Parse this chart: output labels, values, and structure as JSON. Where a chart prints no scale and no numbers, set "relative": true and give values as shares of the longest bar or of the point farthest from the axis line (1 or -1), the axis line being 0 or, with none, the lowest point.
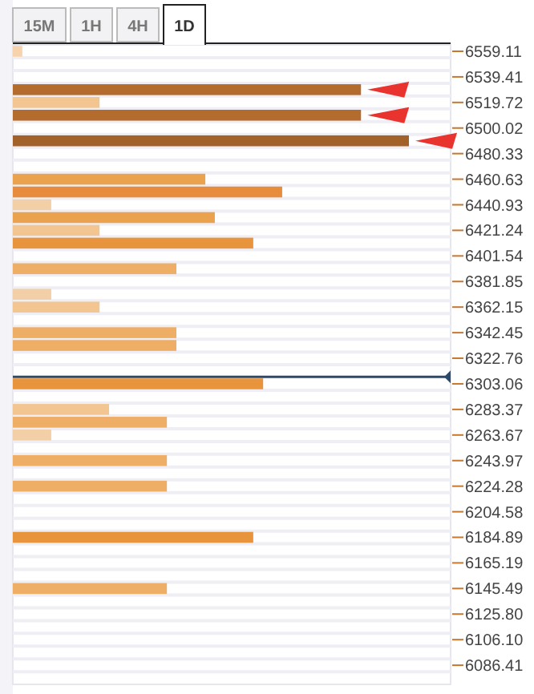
{
  "chart_data": {
    "type": "bar",
    "orientation": "horizontal",
    "relative": true,
    "annotations": [
      "15M",
      "1H",
      "4H",
      "1D"
    ],
    "x": [
      6559.11,
      6529.57,
      6519.72,
      6509.87,
      6490.18,
      6460.63,
      6450.78,
      6440.93,
      6431.09,
      6421.24,
      6411.39,
      6391.7,
      6372.0,
      6362.15,
      6342.45,
      6332.61,
      6303.06,
      6283.37,
      6273.52,
      6263.67,
      6243.97,
      6224.28,
      6184.89,
      6145.49
    ],
    "values": [
      0.024,
      0.879,
      0.219,
      0.879,
      1,
      0.486,
      0.68,
      0.097,
      0.51,
      0.219,
      0.607,
      0.413,
      0.097,
      0.219,
      0.413,
      0.413,
      0.632,
      0.243,
      0.389,
      0.097,
      0.389,
      0.389,
      0.607,
      0.389
    ],
    "colors": [
      "#f7d3ad",
      "#b36b2e",
      "#f2c591",
      "#b36b2e",
      "#a3612a",
      "#eba24f",
      "#e68c3c",
      "#f3cfa7",
      "#eba24f",
      "#f2c591",
      "#e8943d",
      "#eeae66",
      "#f3cfa7",
      "#f2c591",
      "#eeae66",
      "#eeae66",
      "#e8943d",
      "#f2c591",
      "#eeae66",
      "#f3cfa7",
      "#eeae66",
      "#eeae66",
      "#e8943d",
      "#eeae66"
    ],
    "ylim": [
      6071.66,
      6564.03
    ],
    "yticks": [
      6559.11,
      6539.41,
      6519.72,
      6500.02,
      6480.33,
      6460.63,
      6440.93,
      6421.24,
      6401.54,
      6381.85,
      6362.15,
      6342.45,
      6322.76,
      6303.06,
      6283.37,
      6263.67,
      6243.97,
      6224.28,
      6204.58,
      6184.89,
      6165.19,
      6145.49,
      {
        "value": 6125.8,
        "label": "6125.80"
      },
      {
        "value": 6106.1,
        "label": "6106.10"
      },
      6086.41
    ],
    "ref_lines": [
      {
        "axis": "y",
        "value": 6308.4,
        "color": "#2d4a6b"
      }
    ],
    "grid": false
  }
}
